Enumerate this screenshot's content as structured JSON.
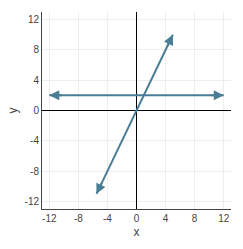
{
  "chart_data": {
    "type": "line",
    "xlabel": "x",
    "ylabel": "y",
    "series": [
      {
        "color": "#4a7d96",
        "marker": "arrow",
        "x": [
          -12,
          12
        ],
        "values": [
          2,
          2
        ]
      },
      {
        "color": "#4a7d96",
        "marker": "arrow",
        "x": [
          -5.5,
          5.0
        ],
        "values": [
          -11,
          10
        ]
      }
    ],
    "xlim": [
      -13,
      13
    ],
    "ylim": [
      -13,
      13
    ],
    "xticks": [
      -12,
      -8,
      -4,
      0,
      4,
      8,
      12
    ],
    "yticks": [
      -12,
      -8,
      -4,
      0,
      4,
      8,
      12
    ],
    "grid": true
  }
}
